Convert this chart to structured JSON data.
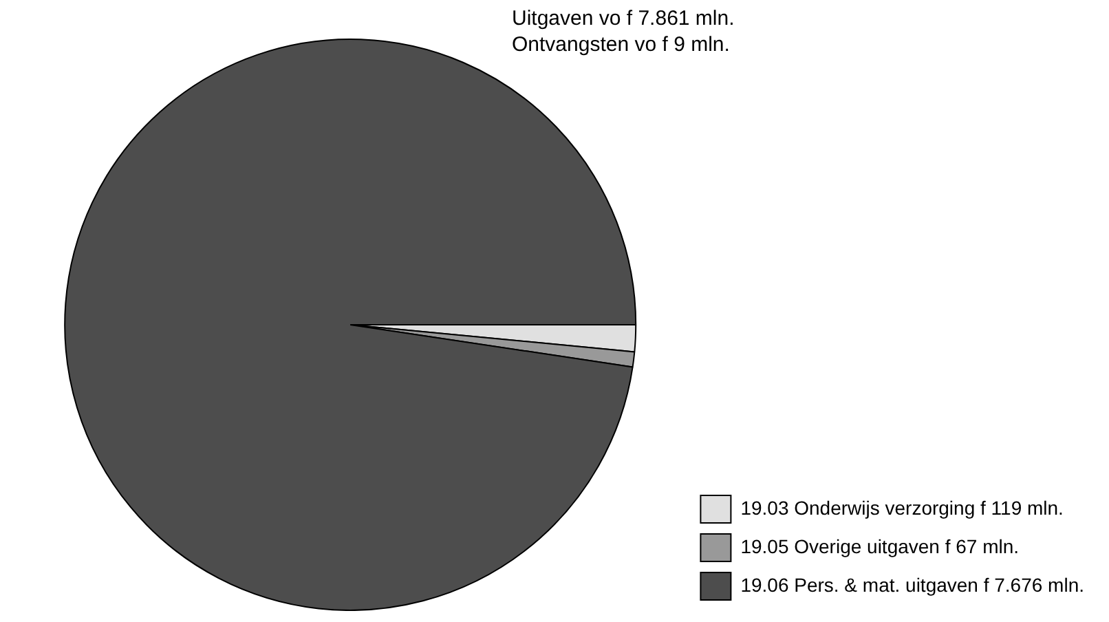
{
  "chart_data": {
    "type": "pie",
    "title": "Uitgaven vo f 7.861 mln.",
    "subtitle": "Ontvangsten vo f 9 mln.",
    "categories": [
      "19.03 Onderwijs verzorging f 119 mln.",
      "19.05 Overige uitgaven f 67 mln.",
      "19.06 Pers. & mat. uitgaven f 7.676 mln."
    ],
    "values": [
      119,
      67,
      7676
    ],
    "colors": [
      "#e0e0e0",
      "#999999",
      "#4d4d4d"
    ],
    "legend": "bottom right"
  }
}
